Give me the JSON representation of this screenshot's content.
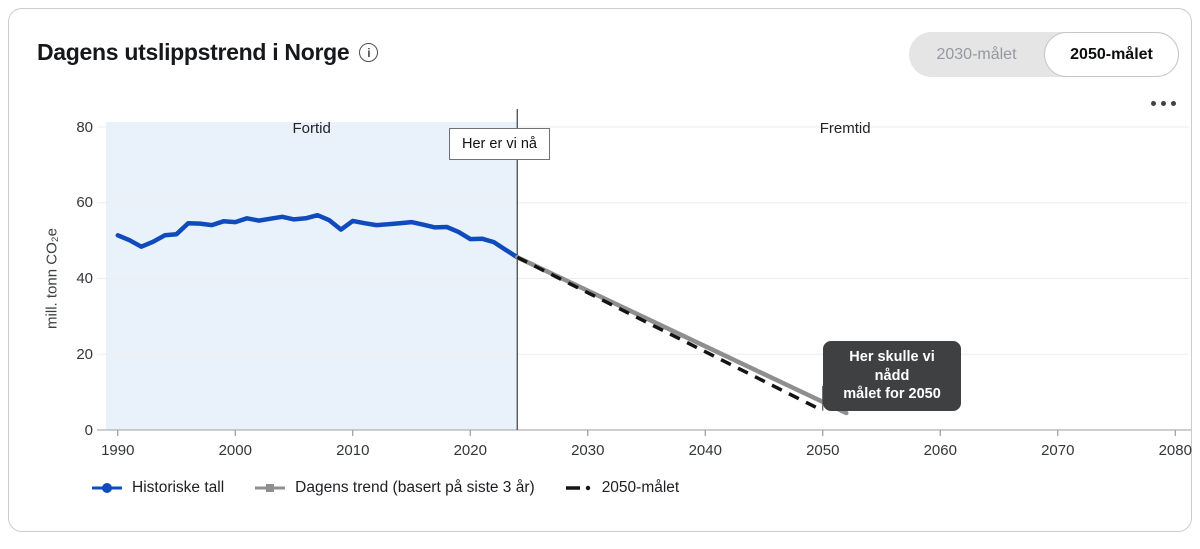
{
  "header": {
    "title": "Dagens utslippstrend i Norge",
    "info_icon": "i",
    "menu_icon": "more-options",
    "toggle": {
      "inactive_label": "2030-målet",
      "active_label": "2050-målet"
    }
  },
  "chart_data": {
    "type": "line",
    "title": "Dagens utslippstrend i Norge",
    "ylabel": "mill. tonn CO₂e",
    "xlim": [
      1989,
      2081
    ],
    "ylim": [
      0,
      80
    ],
    "x_ticks": [
      1990,
      2000,
      2010,
      2020,
      2030,
      2040,
      2050,
      2060,
      2070,
      2080
    ],
    "y_ticks": [
      0,
      20,
      40,
      60,
      80
    ],
    "grid": "horizontal-faint",
    "legend_position": "bottom-left",
    "shaded_region": {
      "from": 1989,
      "to": 2024,
      "color": "#e9f2fb",
      "label": "Fortid"
    },
    "future_region": {
      "from": 2024,
      "to": 2081,
      "label": "Fremtid"
    },
    "now_marker": {
      "year": 2024,
      "label": "Her er vi nå"
    },
    "tooltip": {
      "line1": "Her skulle vi nådd",
      "line2": "målet for 2050",
      "target_year": 2050,
      "bg": "#3e4042"
    },
    "series": [
      {
        "name": "Historiske tall",
        "color": "#0f4bbd",
        "dash": false,
        "x": [
          1990,
          1991,
          1992,
          1993,
          1994,
          1995,
          1996,
          1997,
          1998,
          1999,
          2000,
          2001,
          2002,
          2003,
          2004,
          2005,
          2006,
          2007,
          2008,
          2009,
          2010,
          2011,
          2012,
          2013,
          2014,
          2015,
          2016,
          2017,
          2018,
          2019,
          2020,
          2021,
          2022,
          2023,
          2024
        ],
        "values": [
          51.4,
          50.1,
          48.4,
          49.7,
          51.4,
          51.7,
          54.6,
          54.5,
          54.1,
          55.1,
          54.9,
          55.9,
          55.3,
          55.8,
          56.3,
          55.6,
          55.9,
          56.7,
          55.4,
          52.9,
          55.2,
          54.6,
          54.1,
          54.3,
          54.6,
          54.9,
          54.2,
          53.5,
          53.6,
          52.3,
          50.4,
          50.5,
          49.6,
          47.6,
          45.6
        ]
      },
      {
        "name": "Dagens trend (basert på siste 3 år)",
        "color": "#8f8f8f",
        "dash": false,
        "x": [
          2024,
          2052
        ],
        "values": [
          45.6,
          4.5
        ]
      },
      {
        "name": "2050-målet",
        "color": "#141414",
        "dash": true,
        "x": [
          2024,
          2050
        ],
        "values": [
          45.6,
          5.1
        ]
      }
    ]
  }
}
